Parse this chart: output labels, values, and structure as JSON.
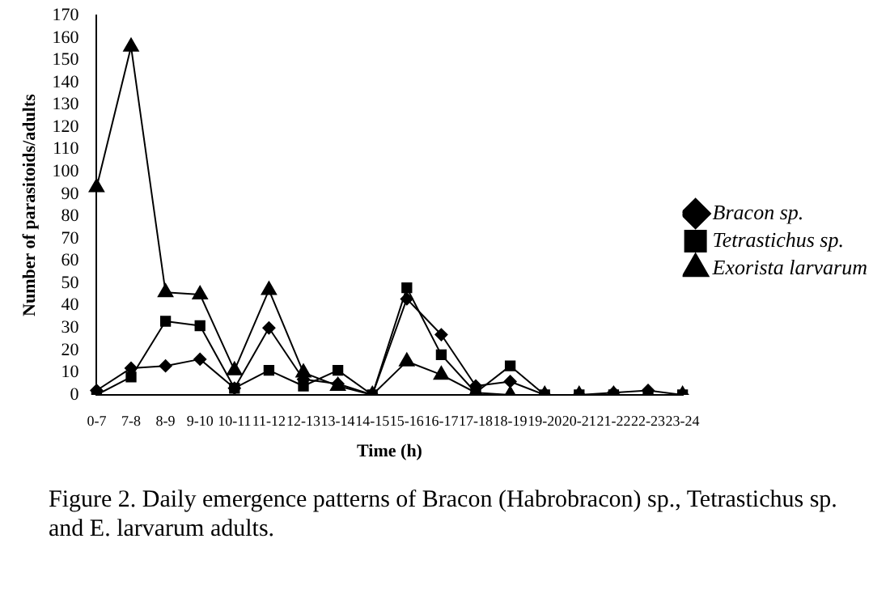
{
  "chart_data": {
    "type": "line",
    "xlabel": "Time (h)",
    "ylabel": "Number of parasitoids/adults",
    "categories": [
      "0-7",
      "7-8",
      "8-9",
      "9-10",
      "10-11",
      "11-12",
      "12-13",
      "13-14",
      "14-15",
      "15-16",
      "16-17",
      "17-18",
      "18-19",
      "19-20",
      "20-21",
      "21-22",
      "22-23",
      "23-24"
    ],
    "series": [
      {
        "name": "Bracon sp.",
        "color": "#000000",
        "marker": "diamond",
        "values": [
          2,
          12,
          13,
          16,
          3,
          30,
          7,
          5,
          0,
          43,
          27,
          4,
          6,
          0,
          0,
          1,
          2,
          0
        ]
      },
      {
        "name": "Tetrastichus sp.",
        "color": "#000000",
        "marker": "square",
        "values": [
          0,
          8,
          33,
          31,
          3,
          11,
          4,
          11,
          0,
          48,
          18,
          1,
          13,
          0,
          0,
          0,
          0,
          0
        ]
      },
      {
        "name": "Exorista larvarum",
        "color": "#000000",
        "marker": "triangle",
        "values": [
          93,
          156,
          46,
          45,
          11,
          47,
          10,
          4,
          0,
          15,
          9,
          1,
          0,
          0,
          0,
          0,
          0,
          0
        ]
      }
    ],
    "ylim": [
      0,
      170
    ],
    "yticks": [
      0,
      10,
      20,
      30,
      40,
      50,
      60,
      70,
      80,
      90,
      100,
      110,
      120,
      130,
      140,
      150,
      160,
      170
    ],
    "grid": false,
    "legend": "right",
    "line_style": "solid",
    "annotations": [
      "Figure 2. Daily emergence patterns of Bracon (Habrobracon) sp., Tetrastichus sp. and E. larvarum adults."
    ]
  }
}
